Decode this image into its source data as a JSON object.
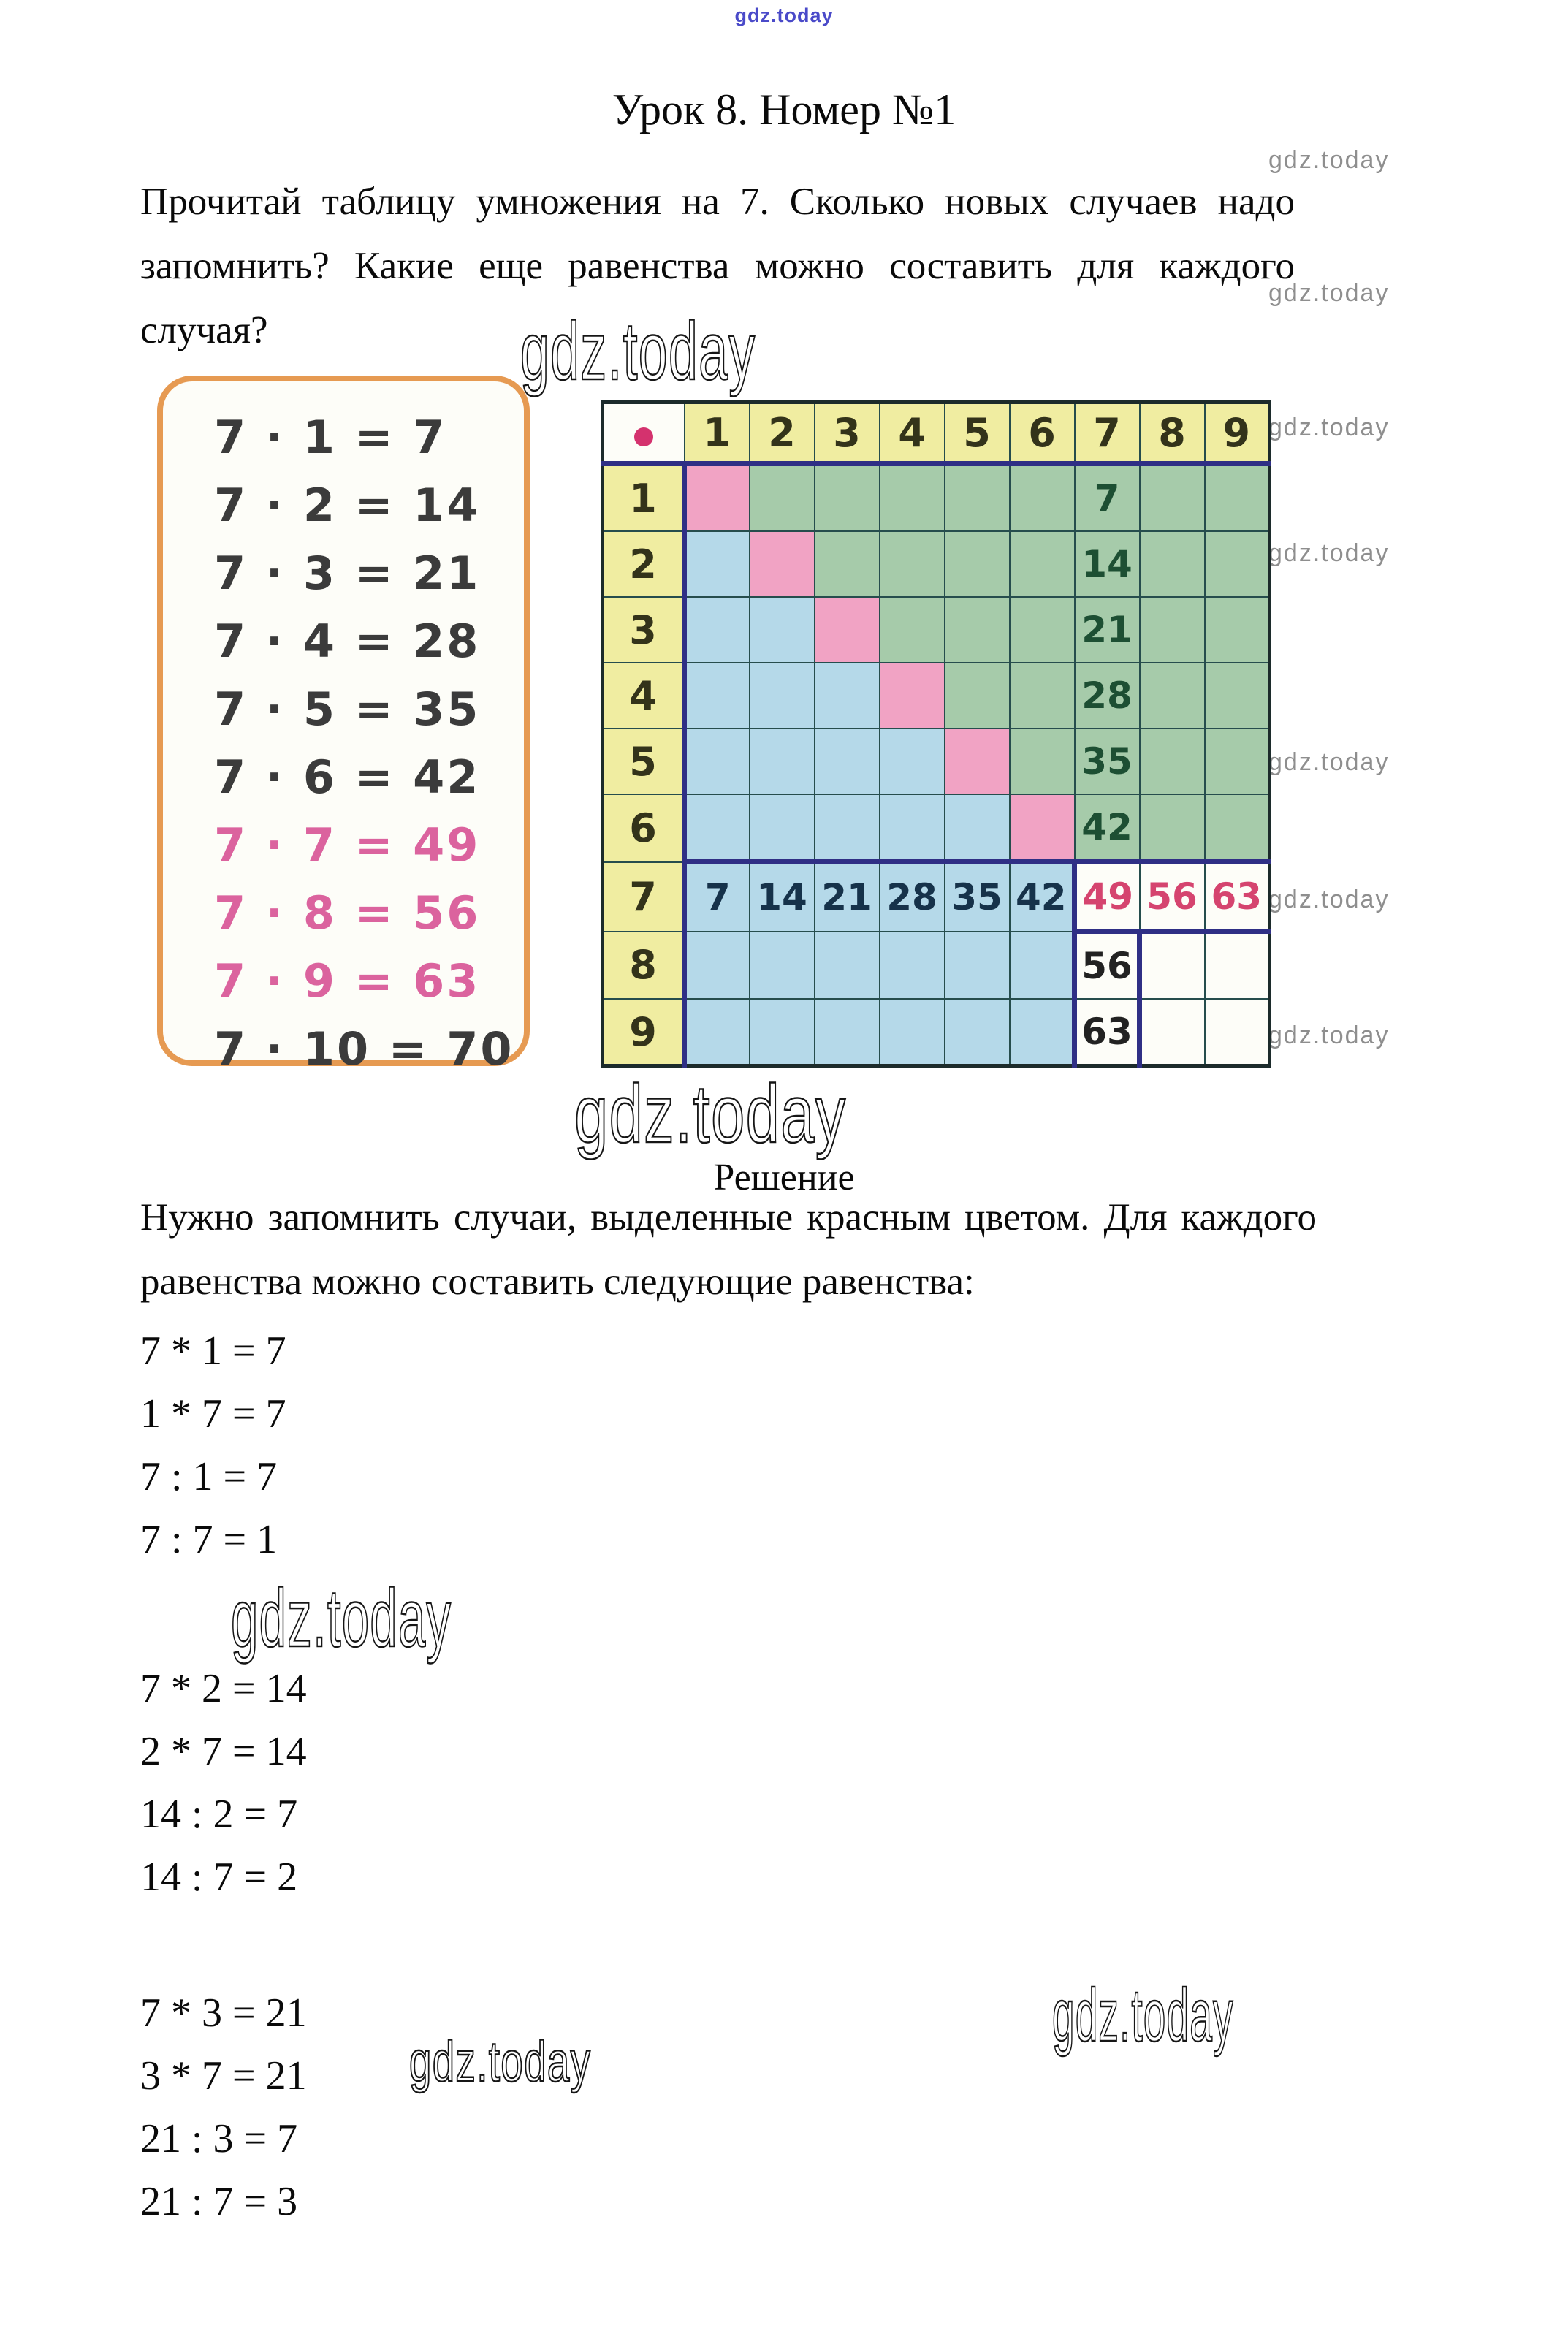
{
  "page": {
    "title": "Урок 8. Номер №1",
    "problem_text": "Прочитай таблицу умножения на 7. Сколько новых случаев надо запомнить? Какие еще равенства можно составить для каждого случая?",
    "solution_heading": "Решение",
    "solution_text": "Нужно запомнить случаи, выделенные красным цветом. Для каждого равенства можно составить следующие равенства:"
  },
  "watermark": {
    "text": "gdz.today",
    "top_color": "#4a4ac9",
    "side_color": "#8e8e8e",
    "big_color": "#161616"
  },
  "fact_box": {
    "border_color": "#e69a52",
    "normal_color": "#3b3b3b",
    "highlight_color": "#db639e",
    "facts": [
      {
        "text": "7 · 1 = 7",
        "highlight": false
      },
      {
        "text": "7 · 2 = 14",
        "highlight": false
      },
      {
        "text": "7 · 3 = 21",
        "highlight": false
      },
      {
        "text": "7 · 4 = 28",
        "highlight": false
      },
      {
        "text": "7 · 5 = 35",
        "highlight": false
      },
      {
        "text": "7 · 6 = 42",
        "highlight": false
      },
      {
        "text": "7 · 7 = 49",
        "highlight": true
      },
      {
        "text": "7 · 8 = 56",
        "highlight": true
      },
      {
        "text": "7 · 9 = 63",
        "highlight": true
      },
      {
        "text": "7 · 10 = 70",
        "highlight": false
      }
    ]
  },
  "grid": {
    "corner_symbol": "multiplication-dot",
    "dot_color": "#d4326e",
    "navy_color": "#2f2f85",
    "colors": {
      "yellow": "#f0eda1",
      "green": "#a6cbaa",
      "blue": "#b5d9e9",
      "pink": "#f1a3c4",
      "white": "#fdfdf8"
    },
    "text_colors": {
      "green": "#1d4f33",
      "navy": "#16324a",
      "red": "#d5446f",
      "black": "#222222",
      "olive": "#33331a"
    },
    "col_headers": [
      "1",
      "2",
      "3",
      "4",
      "5",
      "6",
      "7",
      "8",
      "9"
    ],
    "row_headers": [
      "1",
      "2",
      "3",
      "4",
      "5",
      "6",
      "7",
      "8",
      "9"
    ],
    "rows": [
      [
        {
          "bg": "pink"
        },
        {
          "bg": "green"
        },
        {
          "bg": "green"
        },
        {
          "bg": "green"
        },
        {
          "bg": "green"
        },
        {
          "bg": "green"
        },
        {
          "bg": "green",
          "text": "7",
          "color": "green"
        },
        {
          "bg": "green"
        },
        {
          "bg": "green"
        }
      ],
      [
        {
          "bg": "blue"
        },
        {
          "bg": "pink"
        },
        {
          "bg": "green"
        },
        {
          "bg": "green"
        },
        {
          "bg": "green"
        },
        {
          "bg": "green"
        },
        {
          "bg": "green",
          "text": "14",
          "color": "green"
        },
        {
          "bg": "green"
        },
        {
          "bg": "green"
        }
      ],
      [
        {
          "bg": "blue"
        },
        {
          "bg": "blue"
        },
        {
          "bg": "pink"
        },
        {
          "bg": "green"
        },
        {
          "bg": "green"
        },
        {
          "bg": "green"
        },
        {
          "bg": "green",
          "text": "21",
          "color": "green"
        },
        {
          "bg": "green"
        },
        {
          "bg": "green"
        }
      ],
      [
        {
          "bg": "blue"
        },
        {
          "bg": "blue"
        },
        {
          "bg": "blue"
        },
        {
          "bg": "pink"
        },
        {
          "bg": "green"
        },
        {
          "bg": "green"
        },
        {
          "bg": "green",
          "text": "28",
          "color": "green"
        },
        {
          "bg": "green"
        },
        {
          "bg": "green"
        }
      ],
      [
        {
          "bg": "blue"
        },
        {
          "bg": "blue"
        },
        {
          "bg": "blue"
        },
        {
          "bg": "blue"
        },
        {
          "bg": "pink"
        },
        {
          "bg": "green"
        },
        {
          "bg": "green",
          "text": "35",
          "color": "green"
        },
        {
          "bg": "green"
        },
        {
          "bg": "green"
        }
      ],
      [
        {
          "bg": "blue"
        },
        {
          "bg": "blue"
        },
        {
          "bg": "blue"
        },
        {
          "bg": "blue"
        },
        {
          "bg": "blue"
        },
        {
          "bg": "pink"
        },
        {
          "bg": "green",
          "text": "42",
          "color": "green"
        },
        {
          "bg": "green"
        },
        {
          "bg": "green"
        }
      ],
      [
        {
          "bg": "blue",
          "text": "7",
          "color": "navy"
        },
        {
          "bg": "blue",
          "text": "14",
          "color": "navy"
        },
        {
          "bg": "blue",
          "text": "21",
          "color": "navy"
        },
        {
          "bg": "blue",
          "text": "28",
          "color": "navy"
        },
        {
          "bg": "blue",
          "text": "35",
          "color": "navy"
        },
        {
          "bg": "blue",
          "text": "42",
          "color": "navy"
        },
        {
          "bg": "white",
          "text": "49",
          "color": "red"
        },
        {
          "bg": "white",
          "text": "56",
          "color": "red"
        },
        {
          "bg": "white",
          "text": "63",
          "color": "red"
        }
      ],
      [
        {
          "bg": "blue"
        },
        {
          "bg": "blue"
        },
        {
          "bg": "blue"
        },
        {
          "bg": "blue"
        },
        {
          "bg": "blue"
        },
        {
          "bg": "blue"
        },
        {
          "bg": "white",
          "text": "56",
          "color": "black"
        },
        {
          "bg": "white"
        },
        {
          "bg": "white"
        }
      ],
      [
        {
          "bg": "blue"
        },
        {
          "bg": "blue"
        },
        {
          "bg": "blue"
        },
        {
          "bg": "blue"
        },
        {
          "bg": "blue"
        },
        {
          "bg": "blue"
        },
        {
          "bg": "white",
          "text": "63",
          "color": "black"
        },
        {
          "bg": "white"
        },
        {
          "bg": "white"
        }
      ]
    ]
  },
  "equations": {
    "groups": [
      [
        "7 * 1 = 7",
        "1 * 7 = 7",
        "7 : 1 = 7",
        "7 : 7 = 1"
      ],
      [
        "7 * 2 = 14",
        "2 * 7 = 14",
        "14 : 2 = 7",
        "14 : 7 = 2"
      ],
      [
        "7 * 3 = 21",
        "3 * 7 = 21",
        "21 : 3 = 7",
        "21 : 7 = 3"
      ]
    ]
  }
}
